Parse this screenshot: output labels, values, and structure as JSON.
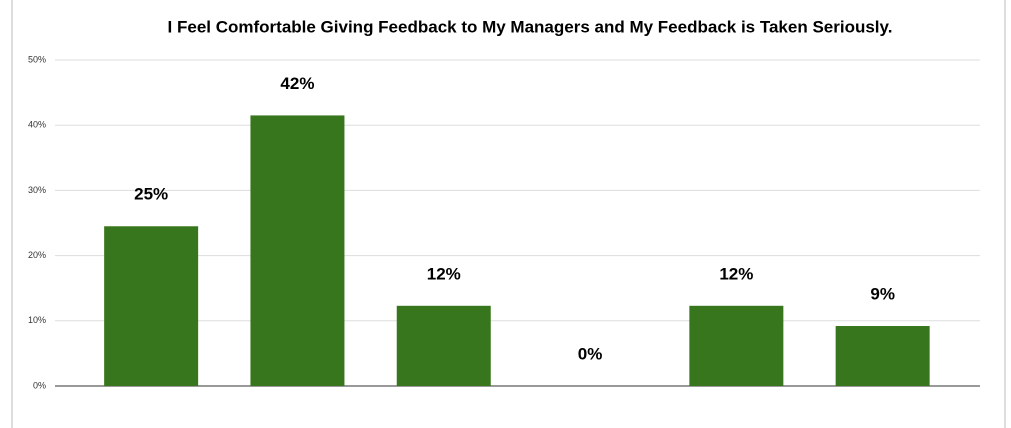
{
  "chart_data": {
    "type": "bar",
    "title": "I Feel Comfortable Giving Feedback to My Managers and My Feedback is Taken Seriously.",
    "categories": [
      null,
      null,
      null,
      null,
      null,
      null
    ],
    "values": [
      24.5,
      41.5,
      12.3,
      0,
      12.3,
      9.2
    ],
    "value_labels": [
      "25%",
      "42%",
      "12%",
      "0%",
      "12%",
      "9%"
    ],
    "color": "#38761d",
    "ylim": [
      0,
      50
    ],
    "yticks": [
      {
        "value": 0,
        "label": "0%"
      },
      {
        "value": 10,
        "label": "10%"
      },
      {
        "value": 20,
        "label": "20%"
      },
      {
        "value": 30,
        "label": "30%"
      },
      {
        "value": 40,
        "label": "40%"
      },
      {
        "value": 50,
        "label": "50%"
      }
    ],
    "grid": true
  }
}
